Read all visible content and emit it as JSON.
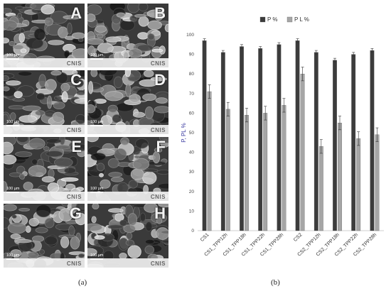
{
  "figure": {
    "caption_a": "(a)",
    "caption_b": "(b)"
  },
  "sem": {
    "tiles": [
      {
        "letter": "A",
        "scale": "100 µm",
        "logo": "CNIS"
      },
      {
        "letter": "B",
        "scale": "100 µm",
        "logo": "CNIS"
      },
      {
        "letter": "C",
        "scale": "100 µm",
        "logo": "CNIS"
      },
      {
        "letter": "D",
        "scale": "100 µm",
        "logo": "CNIS"
      },
      {
        "letter": "E",
        "scale": "100 µm",
        "logo": "CNIS"
      },
      {
        "letter": "F",
        "scale": "100 µm",
        "logo": "CNIS"
      },
      {
        "letter": "G",
        "scale": "100 µm",
        "logo": "CNIS"
      },
      {
        "letter": "H",
        "scale": "100 µm",
        "logo": "CNIS"
      }
    ]
  },
  "chart_data": {
    "type": "bar",
    "ylabel": "P, PL %",
    "ylim": [
      0,
      100
    ],
    "yticks": [
      0,
      10,
      20,
      30,
      40,
      50,
      60,
      70,
      80,
      90,
      100
    ],
    "legend_position": "top-center",
    "categories": [
      "CS1",
      "CS1_TPP12h",
      "CS1_TPP18h",
      "CS1_TPP22h",
      "CS1_TPP28h",
      "CS2",
      "CS2_TPP12h",
      "CS2_TPP18h",
      "CS2_TPP22h",
      "CS2_TPP28h"
    ],
    "series": [
      {
        "name": "P %",
        "color": "#3c3c3c",
        "values": [
          97,
          91,
          94,
          93,
          95,
          97,
          91,
          87,
          90,
          92
        ],
        "errors": [
          1,
          1,
          1,
          1,
          1,
          1,
          1,
          1,
          1,
          1
        ]
      },
      {
        "name": "P L %",
        "color": "#a6a6a6",
        "values": [
          71,
          62,
          59,
          60,
          64,
          80,
          43,
          55,
          47,
          49
        ],
        "errors": [
          3.5,
          3.5,
          3.5,
          3.5,
          3.5,
          3.5,
          3.5,
          3.5,
          3.5,
          3.5
        ]
      }
    ]
  }
}
